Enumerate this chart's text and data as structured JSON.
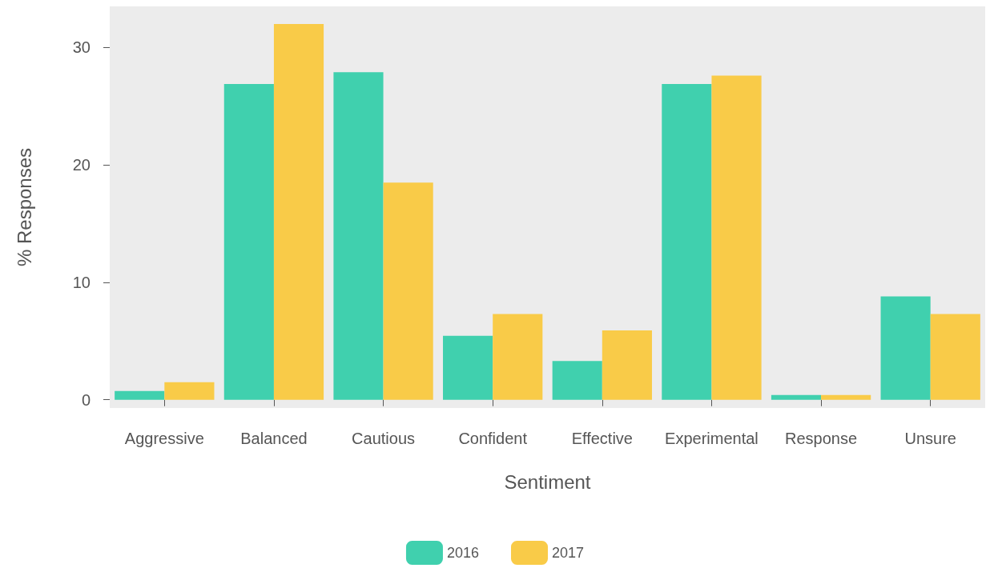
{
  "chart_data": {
    "type": "bar",
    "xlabel": "Sentiment",
    "ylabel": "% Responses",
    "categories": [
      "Aggressive",
      "Balanced",
      "Cautious",
      "Confident",
      "Effective",
      "Experimental",
      "Response",
      "Unsure"
    ],
    "series": [
      {
        "name": "2016",
        "color": "#40d0ae",
        "values": [
          0.75,
          26.9,
          27.9,
          5.45,
          3.3,
          26.9,
          0.4,
          8.8
        ]
      },
      {
        "name": "2017",
        "color": "#f9cb48",
        "values": [
          1.5,
          32.0,
          18.5,
          7.3,
          5.9,
          27.6,
          0.4,
          7.3
        ]
      }
    ],
    "ylim": [
      -0.7,
      33.5
    ],
    "yticks": [
      0,
      10,
      20,
      30
    ],
    "grid": false,
    "legend": "bottom"
  }
}
